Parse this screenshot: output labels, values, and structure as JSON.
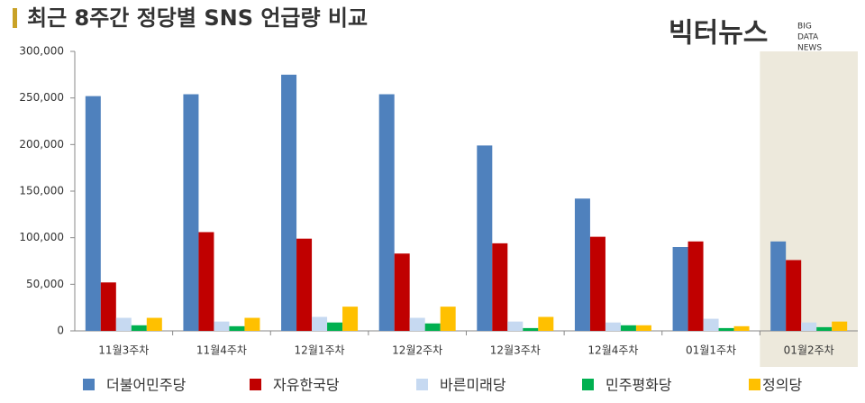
{
  "chart_data": {
    "type": "bar",
    "title": "최근 8주간 정당별 SNS 언급량 비교",
    "watermark": {
      "name": "빅터뉴스",
      "lines": [
        "BIG",
        "DATA",
        "NEWS"
      ]
    },
    "categories": [
      "11월3주차",
      "11월4주차",
      "12월1주차",
      "12월2주차",
      "12월3주차",
      "12월4주차",
      "01월1주차",
      "01월2주차"
    ],
    "series": [
      {
        "name": "더불어민주당",
        "color": "#4f81bd",
        "values": [
          252000,
          254000,
          275000,
          254000,
          199000,
          142000,
          90000,
          96000
        ]
      },
      {
        "name": "자유한국당",
        "color": "#c00000",
        "values": [
          52000,
          106000,
          99000,
          83000,
          94000,
          101000,
          96000,
          76000
        ]
      },
      {
        "name": "바른미래당",
        "color": "#c6d9f1",
        "values": [
          14000,
          10000,
          15000,
          14000,
          10000,
          9000,
          13000,
          9000
        ]
      },
      {
        "name": "민주평화당",
        "color": "#00b050",
        "values": [
          6000,
          5000,
          9000,
          8000,
          3000,
          6000,
          3000,
          4000
        ]
      },
      {
        "name": "정의당",
        "color": "#ffc000",
        "values": [
          14000,
          14000,
          26000,
          26000,
          15000,
          6000,
          5000,
          10000
        ]
      }
    ],
    "ylim": [
      0,
      300000
    ],
    "yticks": [
      0,
      {
        "value": 50000,
        "label": "50,000"
      },
      {
        "value": 100000,
        "label": "100,000"
      },
      {
        "value": 150000,
        "label": "150,000"
      },
      {
        "value": 200000,
        "label": "200,000"
      },
      {
        "value": 250000,
        "label": "250,000"
      },
      {
        "value": 300000,
        "label": "300,000"
      }
    ],
    "highlight": {
      "index": 7,
      "color": "#ede9dc"
    },
    "legend": "bottom"
  }
}
